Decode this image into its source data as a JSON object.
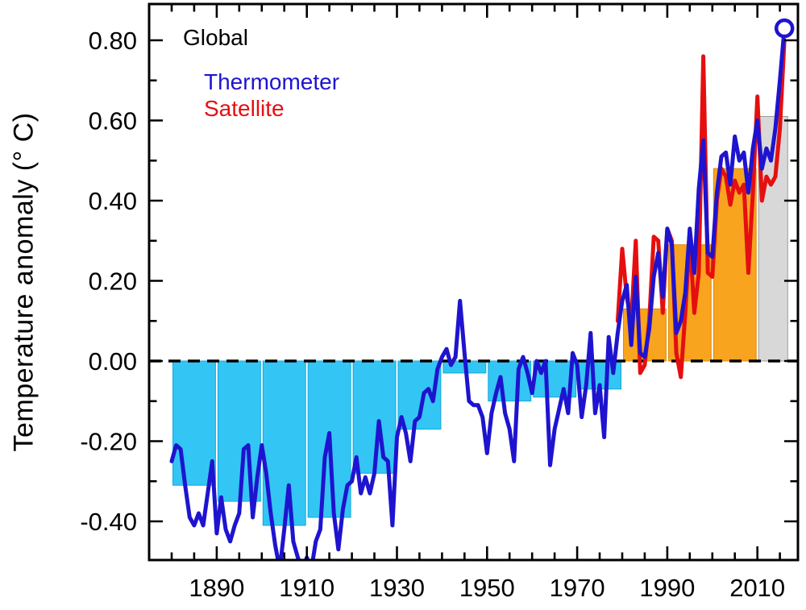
{
  "chart_data": {
    "type": "line",
    "title": "Global",
    "ylabel": "Temperature anomaly (° C)",
    "legend": [
      {
        "label": "Global",
        "color": "#000000"
      },
      {
        "label": "Thermometer",
        "color": "#1e14cf"
      },
      {
        "label": "Satellite",
        "color": "#e60f0f"
      }
    ],
    "x_axis": {
      "min": 1875,
      "max": 2019,
      "major_ticks": [
        1890,
        1910,
        1930,
        1950,
        1970,
        1990,
        2010
      ],
      "major_tick_labels": [
        "1890",
        "1910",
        "1930",
        "1950",
        "1970",
        "1990",
        "2010"
      ],
      "minor_tick_start": 1880,
      "minor_tick_end": 2015,
      "minor_tick_step": 5
    },
    "y_axis": {
      "min": -0.4965,
      "max": 0.8905,
      "major_ticks": [
        -0.4,
        -0.2,
        0.0,
        0.2,
        0.4,
        0.6,
        0.8
      ],
      "major_tick_labels": [
        "-0.40",
        "-0.20",
        "0.00",
        "0.20",
        "0.40",
        "0.60",
        "0.80"
      ],
      "minor_ticks": [
        -0.3,
        -0.1,
        0.1,
        0.3,
        0.5,
        0.7
      ]
    },
    "zero_line": {
      "value": 0,
      "style": "dashed",
      "color": "#000000"
    },
    "series": [
      {
        "name": "Thermometer",
        "color": "#1e14cf",
        "start_year": 1880,
        "end_marker": "open-circle",
        "values": [
          -0.25,
          -0.21,
          -0.22,
          -0.31,
          -0.39,
          -0.41,
          -0.38,
          -0.41,
          -0.33,
          -0.25,
          -0.43,
          -0.34,
          -0.42,
          -0.45,
          -0.41,
          -0.38,
          -0.22,
          -0.21,
          -0.39,
          -0.29,
          -0.21,
          -0.28,
          -0.38,
          -0.46,
          -0.52,
          -0.42,
          -0.31,
          -0.45,
          -0.49,
          -0.52,
          -0.49,
          -0.52,
          -0.45,
          -0.42,
          -0.24,
          -0.18,
          -0.38,
          -0.47,
          -0.37,
          -0.31,
          -0.3,
          -0.24,
          -0.33,
          -0.29,
          -0.33,
          -0.28,
          -0.15,
          -0.24,
          -0.25,
          -0.41,
          -0.19,
          -0.14,
          -0.18,
          -0.25,
          -0.15,
          -0.14,
          -0.08,
          -0.07,
          -0.1,
          -0.02,
          0.01,
          0.03,
          -0.01,
          0.01,
          0.15,
          0.02,
          -0.1,
          -0.11,
          -0.11,
          -0.14,
          -0.23,
          -0.13,
          -0.08,
          -0.04,
          -0.13,
          -0.17,
          -0.25,
          -0.02,
          0.01,
          -0.03,
          -0.08,
          0.0,
          -0.03,
          0.0,
          -0.26,
          -0.17,
          -0.12,
          -0.07,
          -0.13,
          0.02,
          -0.01,
          -0.14,
          -0.06,
          0.07,
          -0.13,
          -0.06,
          -0.19,
          0.06,
          -0.03,
          0.07,
          0.15,
          0.19,
          0.04,
          0.21,
          0.02,
          0.01,
          0.08,
          0.21,
          0.27,
          0.16,
          0.33,
          0.29,
          0.07,
          0.1,
          0.17,
          0.33,
          0.22,
          0.43,
          0.55,
          0.27,
          0.26,
          0.42,
          0.51,
          0.52,
          0.44,
          0.56,
          0.5,
          0.52,
          0.42,
          0.53,
          0.6,
          0.48,
          0.53,
          0.5,
          0.58,
          0.7,
          0.83
        ]
      },
      {
        "name": "Satellite",
        "color": "#e60f0f",
        "start_year": 1979,
        "values": [
          0.1,
          0.28,
          0.16,
          0.1,
          0.3,
          -0.03,
          -0.01,
          0.1,
          0.31,
          0.3,
          0.12,
          0.33,
          0.3,
          0.02,
          -0.04,
          0.12,
          0.31,
          0.12,
          0.22,
          0.76,
          0.22,
          0.21,
          0.4,
          0.48,
          0.46,
          0.39,
          0.45,
          0.42,
          0.44,
          0.22,
          0.42,
          0.66,
          0.4,
          0.46,
          0.44,
          0.46,
          0.58,
          0.8
        ]
      }
    ],
    "decadal_bars": {
      "negative_color": "#33c6f4",
      "negative_border": "#13a7de",
      "positive_color": "#f8a41f",
      "positive_border": "#db8d10",
      "latest_color": "#d8d8d8",
      "latest_border": "#9b9b9b",
      "bars": [
        {
          "label": "1880s",
          "start": 1880,
          "end": 1890,
          "value": -0.31
        },
        {
          "label": "1890s",
          "start": 1890,
          "end": 1900,
          "value": -0.35
        },
        {
          "label": "1900s",
          "start": 1900,
          "end": 1910,
          "value": -0.41
        },
        {
          "label": "1910s",
          "start": 1910,
          "end": 1920,
          "value": -0.39
        },
        {
          "label": "1920s",
          "start": 1920,
          "end": 1930,
          "value": -0.28
        },
        {
          "label": "1930s",
          "start": 1930,
          "end": 1940,
          "value": -0.17
        },
        {
          "label": "1940s",
          "start": 1940,
          "end": 1950,
          "value": -0.03
        },
        {
          "label": "1950s",
          "start": 1950,
          "end": 1960,
          "value": -0.1
        },
        {
          "label": "1960s",
          "start": 1960,
          "end": 1970,
          "value": -0.09
        },
        {
          "label": "1970s",
          "start": 1970,
          "end": 1980,
          "value": -0.07
        },
        {
          "label": "1980s",
          "start": 1980,
          "end": 1990,
          "value": 0.13
        },
        {
          "label": "1990s",
          "start": 1990,
          "end": 2000,
          "value": 0.29
        },
        {
          "label": "2000s",
          "start": 2000,
          "end": 2010,
          "value": 0.48
        },
        {
          "label": "2010s",
          "start": 2010,
          "end": 2017,
          "value": 0.61,
          "latest": true
        }
      ]
    }
  }
}
